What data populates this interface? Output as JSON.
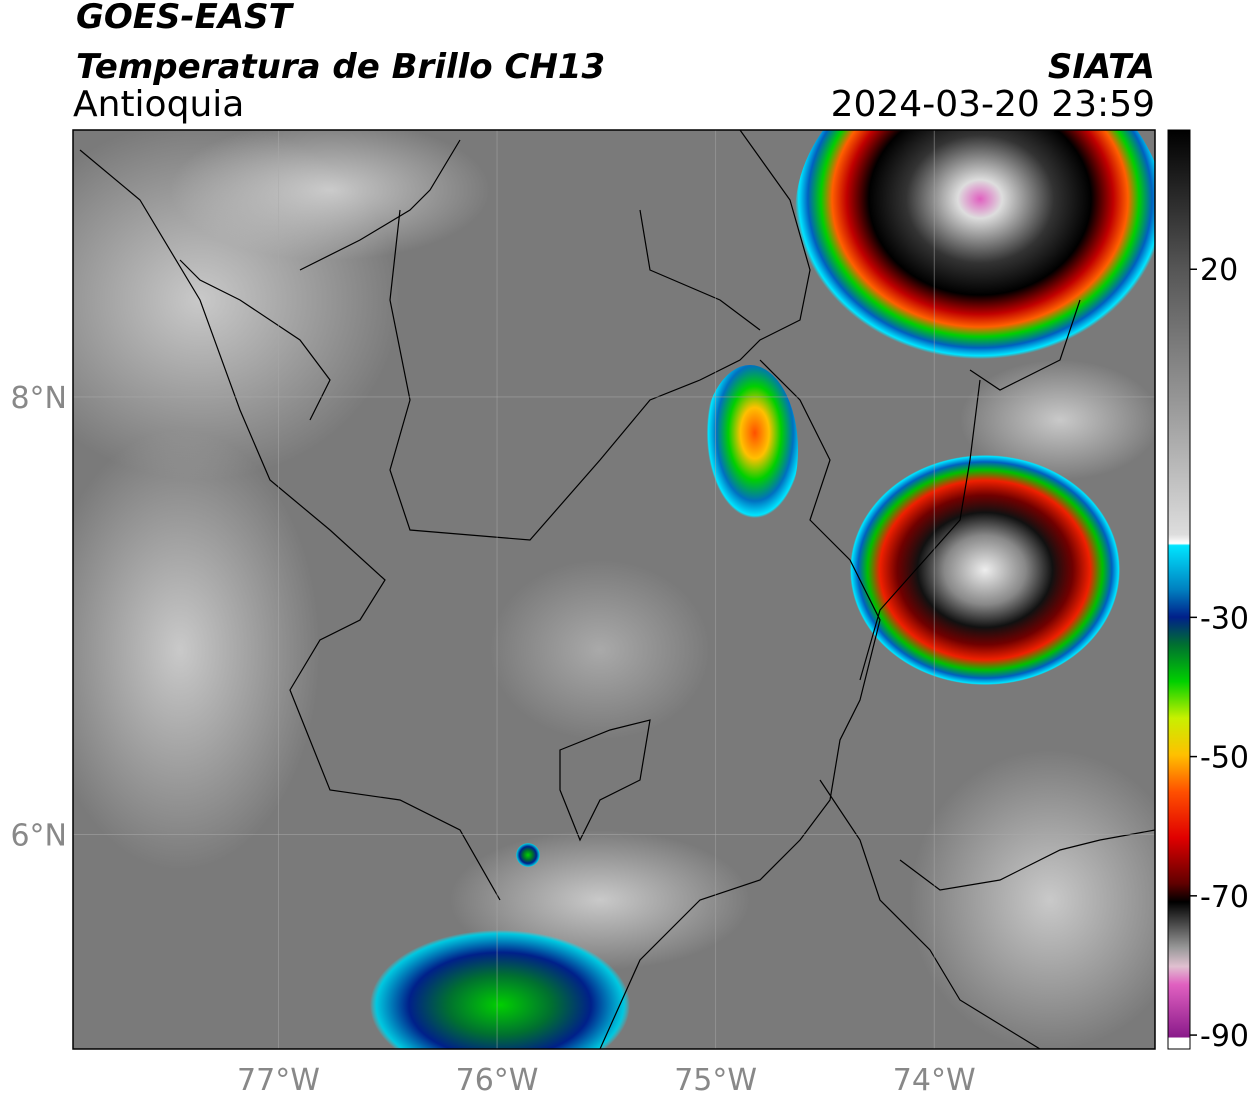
{
  "header": {
    "satellite": "GOES-EAST",
    "product": "Temperatura de Brillo CH13",
    "region": "Antioquia",
    "source": "SIATA",
    "datetime": "2024-03-20 23:59"
  },
  "map": {
    "xlim": [
      -77.94,
      -72.99
    ],
    "ylim": [
      5.02,
      9.22
    ],
    "xticks": [
      {
        "value": -77,
        "label": "77°W"
      },
      {
        "value": -76,
        "label": "76°W"
      },
      {
        "value": -75,
        "label": "75°W"
      },
      {
        "value": -74,
        "label": "74°W"
      }
    ],
    "yticks": [
      {
        "value": 8,
        "label": "8°N"
      },
      {
        "value": 6,
        "label": "6°N"
      }
    ],
    "grid": true
  },
  "colorbar": {
    "lim": [
      -92,
      40
    ],
    "ticks": [
      20,
      -30,
      -50,
      -70,
      -90
    ]
  }
}
